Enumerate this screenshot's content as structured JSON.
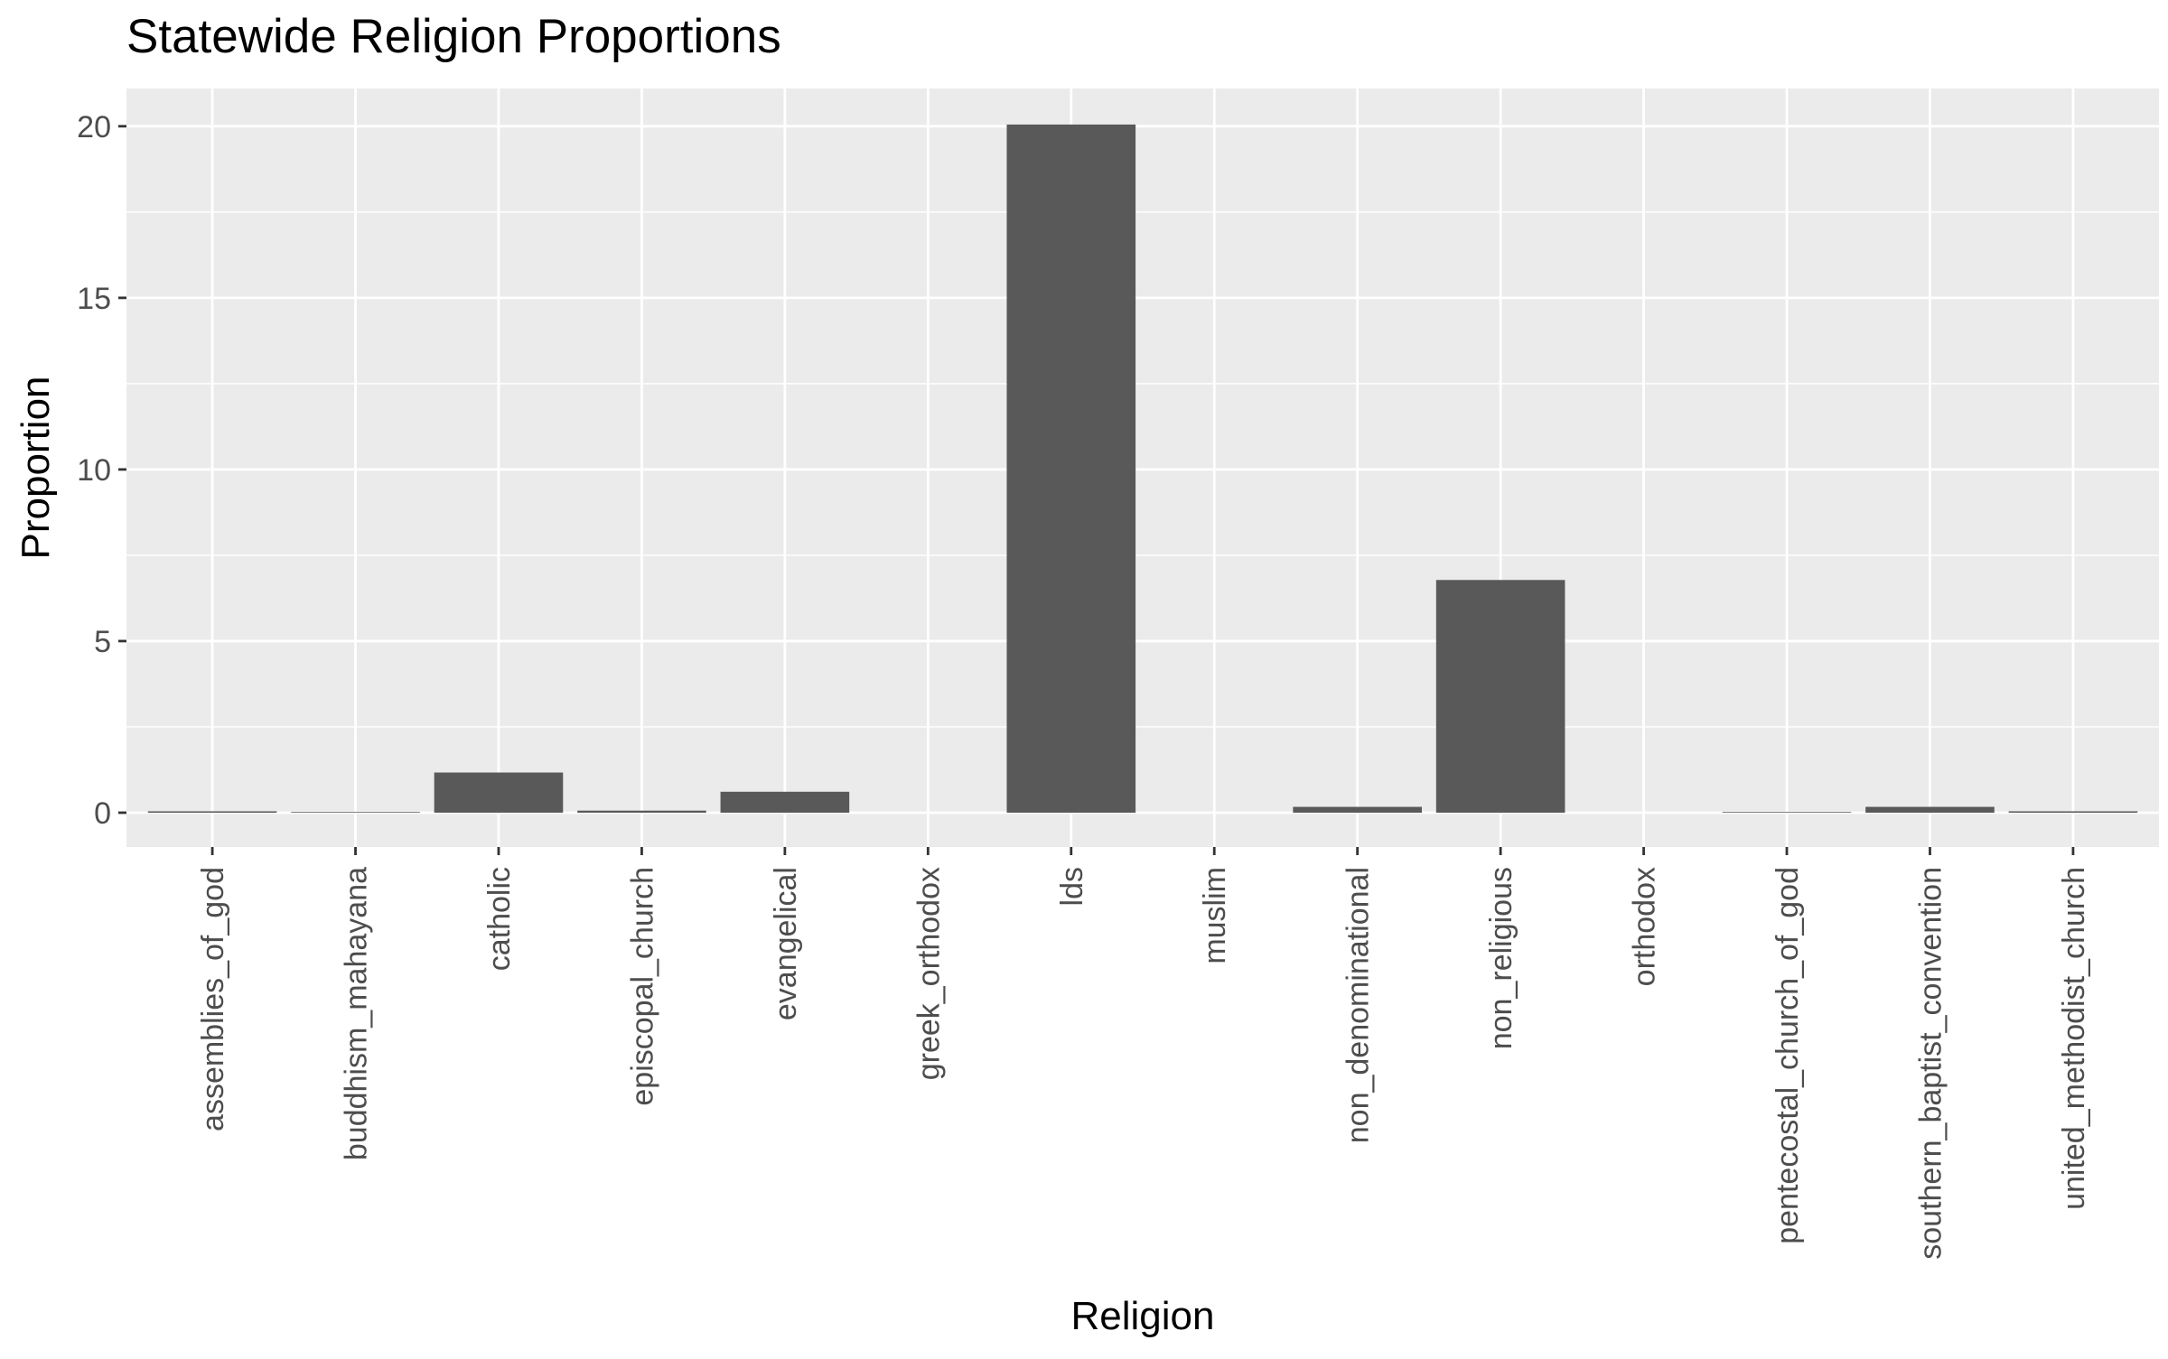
{
  "chart_data": {
    "type": "bar",
    "title": "Statewide Religion Proportions",
    "xlabel": "Religion",
    "ylabel": "Proportion",
    "ylim": [
      -1.0,
      21.1
    ],
    "yticks": [
      0,
      5,
      10,
      15,
      20
    ],
    "grid": true,
    "legend": "none",
    "bar_color": "#595959",
    "panel_color": "#ebebeb",
    "categories": [
      "assemblies_of_god",
      "buddhism_mahayana",
      "catholic",
      "episcopal_church",
      "evangelical",
      "greek_orthodox",
      "lds",
      "muslim",
      "non_denominational",
      "non_religious",
      "orthodox",
      "pentecostal_church_of_god",
      "southern_baptist_convention",
      "united_methodist_church"
    ],
    "values": [
      0.04,
      0.02,
      1.17,
      0.06,
      0.61,
      0.0,
      20.05,
      0.0,
      0.17,
      6.78,
      0.0,
      0.02,
      0.17,
      0.04
    ]
  }
}
